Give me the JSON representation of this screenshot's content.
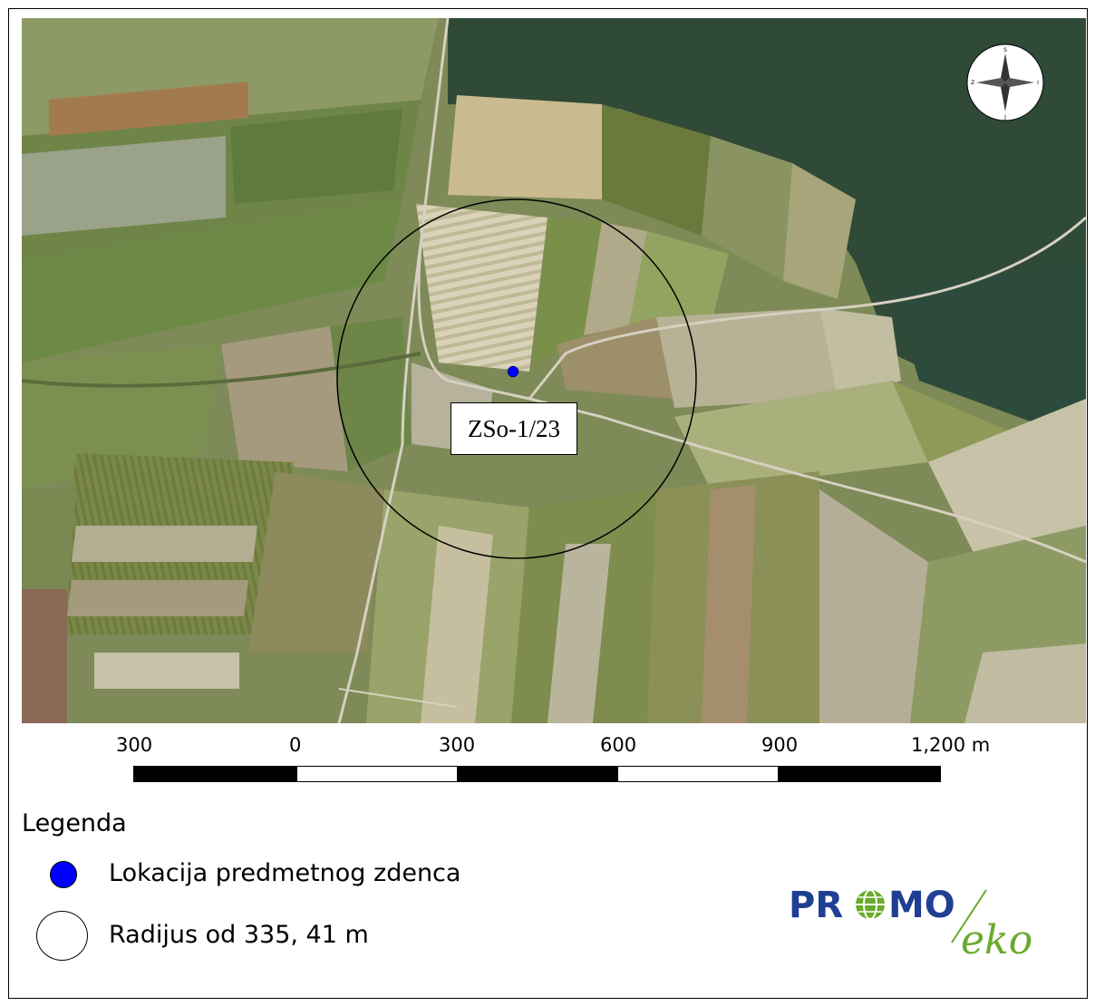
{
  "map": {
    "well_label": "ZSo-1/23",
    "compass_letters": {
      "n": "S",
      "e": "I",
      "s": "J",
      "w": "Z"
    },
    "colors": {
      "well_point": "#0000ff",
      "radius_circle": "#000000"
    }
  },
  "scale": {
    "labels": [
      "300",
      "0",
      "300",
      "600",
      "900",
      "1,200 m"
    ],
    "segments": [
      "black",
      "white",
      "black",
      "white",
      "black"
    ]
  },
  "legend": {
    "title": "Legenda",
    "items": [
      {
        "label": "Lokacija predmetnog zdenca",
        "symbol": "blue-dot"
      },
      {
        "label": "Radijus od 335, 41 m",
        "symbol": "circle-outline"
      }
    ]
  },
  "logo": {
    "part1": "PR",
    "part2": "MO",
    "part3": "eko",
    "colors": {
      "blue": "#1f3f94",
      "green": "#6aaa2c"
    }
  }
}
